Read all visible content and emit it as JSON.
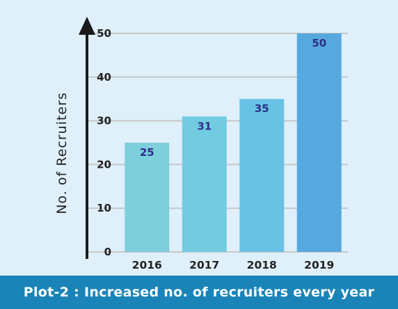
{
  "chart_data": {
    "type": "bar",
    "categories": [
      "2016",
      "2017",
      "2018",
      "2019"
    ],
    "values": [
      25,
      31,
      35,
      50
    ],
    "data_labels": [
      "25",
      "31",
      "35",
      "50"
    ],
    "ylabel": "No. of Recruiters",
    "xlabel": "",
    "ylim": [
      0,
      50
    ],
    "yticks": [
      0,
      10,
      20,
      30,
      40,
      50
    ],
    "grid": true,
    "bar_colors": [
      "#7ecfdc",
      "#72cbe0",
      "#68c2e3",
      "#56a9df"
    ],
    "label_color": "#2c2f8a",
    "grid_color": "#c7c7c7"
  },
  "caption": {
    "text": "Plot-2 : Increased no. of recruiters every year",
    "background": "#1a84b8",
    "color": "#ffffff"
  },
  "colors": {
    "page_background": "#dff0fb",
    "axis": "#1a1a1a"
  }
}
